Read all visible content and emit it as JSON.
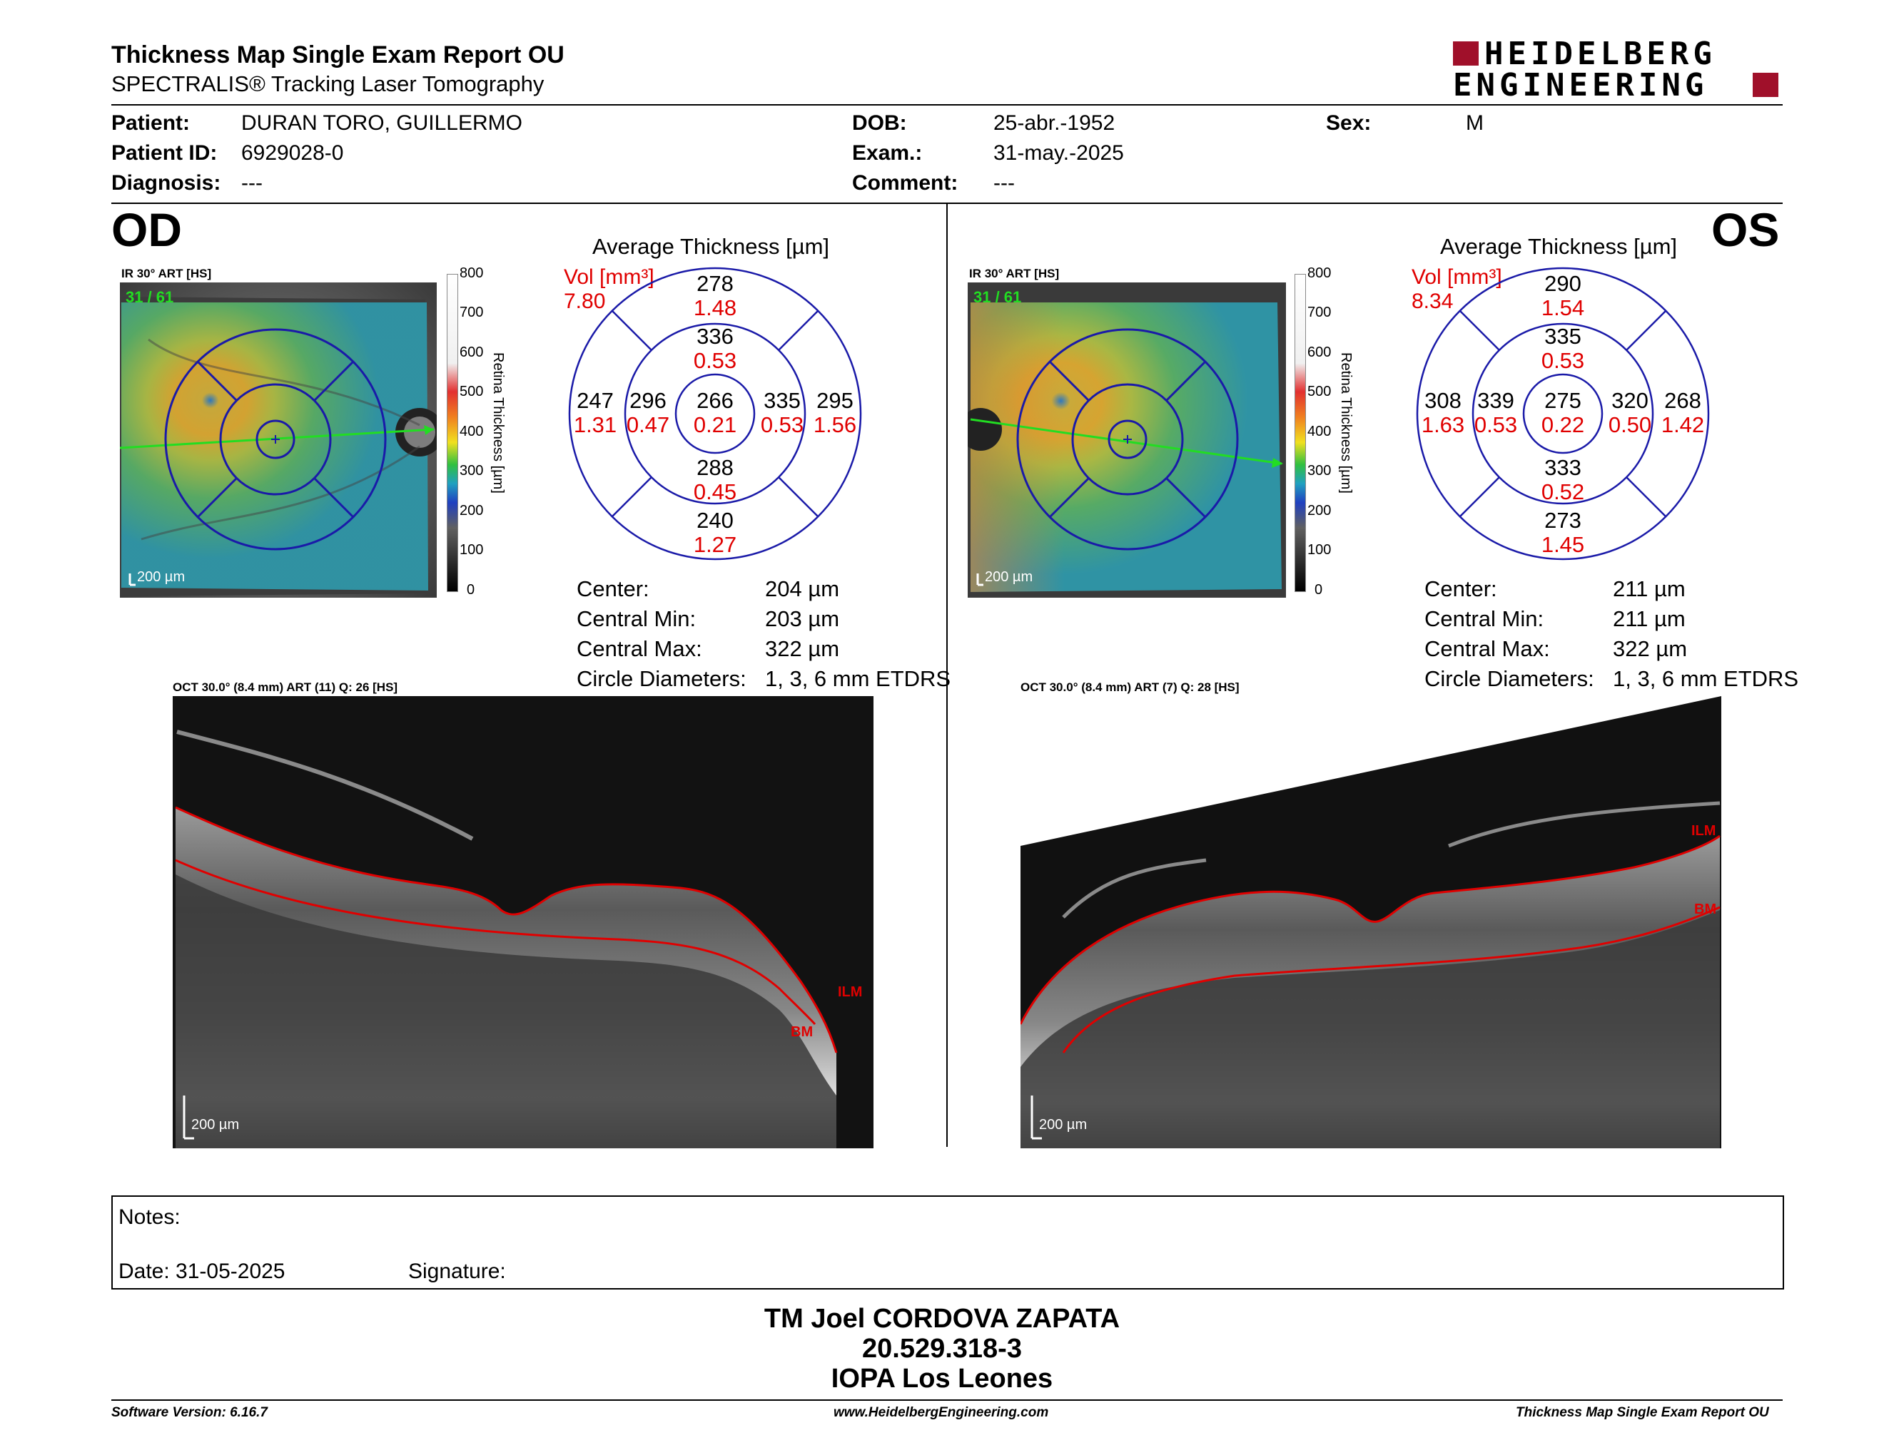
{
  "header": {
    "title": "Thickness Map Single Exam Report OU",
    "subtitle": "SPECTRALIS® Tracking Laser Tomography",
    "logo_line1": "HEIDELBERG",
    "logo_line2": "ENGINEERING"
  },
  "patient": {
    "patient_label": "Patient:",
    "patient_value": "DURAN TORO, GUILLERMO",
    "id_label": "Patient ID:",
    "id_value": "6929028-0",
    "diagnosis_label": "Diagnosis:",
    "diagnosis_value": "---",
    "dob_label": "DOB:",
    "dob_value": "25-abr.-1952",
    "exam_label": "Exam.:",
    "exam_value": "31-may.-2025",
    "comment_label": "Comment:",
    "comment_value": "---",
    "sex_label": "Sex:",
    "sex_value": "M"
  },
  "od": {
    "eye": "OD",
    "ir_label": "IR 30° ART [HS]",
    "frame": "31 / 61",
    "scale": "200 µm",
    "avg_title": "Average Thickness [µm]",
    "vol_label": "Vol [mm³]",
    "vol_value": "7.80",
    "etdrs": {
      "center": [
        "266",
        "0.21"
      ],
      "inner_sup": [
        "336",
        "0.53"
      ],
      "inner_inf": [
        "288",
        "0.45"
      ],
      "inner_temp": [
        "296",
        "0.47"
      ],
      "inner_nasal": [
        "335",
        "0.53"
      ],
      "outer_sup": [
        "278",
        "1.48"
      ],
      "outer_inf": [
        "240",
        "1.27"
      ],
      "outer_temp": [
        "247",
        "1.31"
      ],
      "outer_nasal": [
        "295",
        "1.56"
      ]
    },
    "stats": [
      {
        "label": "Center:",
        "value": "204 µm"
      },
      {
        "label": "Central Min:",
        "value": "203 µm"
      },
      {
        "label": "Central Max:",
        "value": "322 µm"
      },
      {
        "label": "Circle Diameters:",
        "value": "1, 3, 6 mm ETDRS"
      }
    ],
    "oct_label": "OCT 30.0° (8.4 mm) ART (11) Q: 26 [HS]",
    "oct_scale": "200 µm",
    "ilm": "ILM",
    "bm": "BM"
  },
  "os": {
    "eye": "OS",
    "ir_label": "IR 30° ART [HS]",
    "frame": "31 / 61",
    "scale": "200 µm",
    "avg_title": "Average Thickness [µm]",
    "vol_label": "Vol [mm³]",
    "vol_value": "8.34",
    "etdrs": {
      "center": [
        "275",
        "0.22"
      ],
      "inner_sup": [
        "335",
        "0.53"
      ],
      "inner_inf": [
        "333",
        "0.52"
      ],
      "inner_temp": [
        "320",
        "0.50"
      ],
      "inner_nasal": [
        "339",
        "0.53"
      ],
      "outer_sup": [
        "290",
        "1.54"
      ],
      "outer_inf": [
        "273",
        "1.45"
      ],
      "outer_temp": [
        "268",
        "1.42"
      ],
      "outer_nasal": [
        "308",
        "1.63"
      ]
    },
    "stats": [
      {
        "label": "Center:",
        "value": "211 µm"
      },
      {
        "label": "Central Min:",
        "value": "211 µm"
      },
      {
        "label": "Central Max:",
        "value": "322 µm"
      },
      {
        "label": "Circle Diameters:",
        "value": "1, 3, 6 mm ETDRS"
      }
    ],
    "oct_label": "OCT 30.0° (8.4 mm) ART (7) Q: 28 [HS]",
    "oct_scale": "200 µm",
    "ilm": "ILM",
    "bm": "BM"
  },
  "colorbar": {
    "ticks": [
      "800",
      "700",
      "600",
      "500",
      "400",
      "300",
      "200",
      "100",
      "0"
    ],
    "axis_label": "Retina Thickness [µm]"
  },
  "notes": {
    "notes_label": "Notes:",
    "date_label": "Date: 31-05-2025",
    "signature_label": "Signature:"
  },
  "signatory": {
    "name": "TM Joel CORDOVA ZAPATA",
    "id": "20.529.318-3",
    "org": "IOPA Los Leones"
  },
  "footer": {
    "version": "Software Version: 6.16.7",
    "website": "www.HeidelbergEngineering.com",
    "report": "Thickness Map Single Exam Report OU"
  },
  "colors": {
    "accent_red": "#e00000",
    "etdrs_blue": "#1a1aa8",
    "logo_red": "#a0102a"
  }
}
